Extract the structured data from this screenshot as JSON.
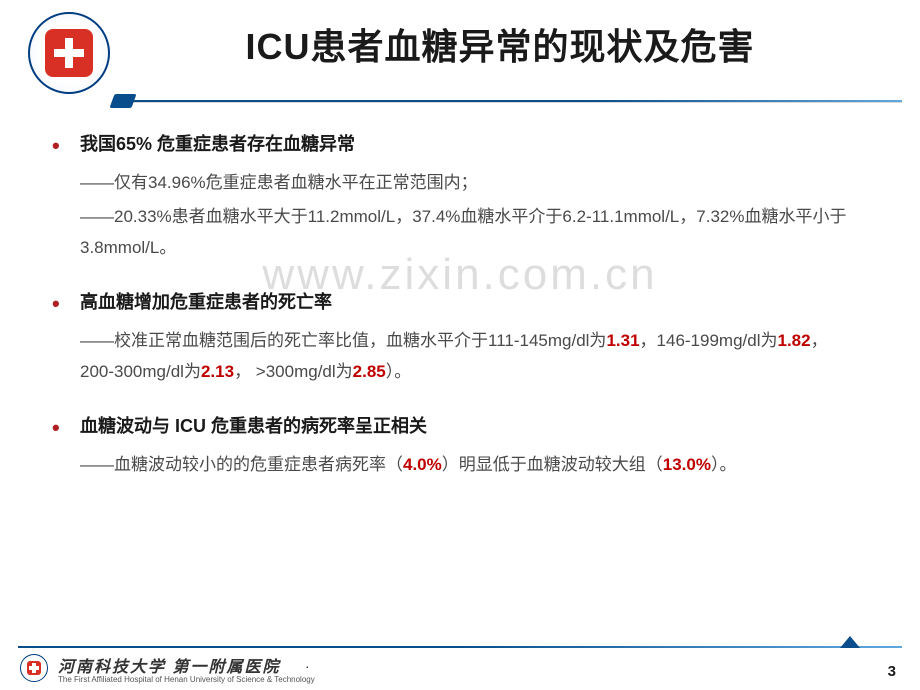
{
  "colors": {
    "accent_red": "#c00000",
    "nav_blue": "#0a4d8c",
    "logo_red": "#d93025",
    "text_dark": "#1a1a1a",
    "text_body": "#404040",
    "bg": "#ffffff",
    "watermark": "rgba(150,150,150,.32)"
  },
  "typography": {
    "title_size": 36,
    "bullet_size": 18,
    "body_size": 17,
    "footer_cn_size": 16,
    "footer_en_size": 8
  },
  "header": {
    "title": "ICU患者血糖异常的现状及危害"
  },
  "watermark": "www.zixin.com.cn",
  "bullets": [
    {
      "heading": "我国65% 危重症患者存在血糖异常",
      "lines": [
        {
          "text": "——仅有34.96%危重症患者血糖水平在正常范围内；"
        },
        {
          "text": "——20.33%患者血糖水平大于11.2mmol/L，37.4%血糖水平介于6.2-11.1mmol/L，7.32%血糖水平小于3.8mmol/L。"
        }
      ]
    },
    {
      "heading": "高血糖增加危重症患者的死亡率",
      "lines": [
        {
          "prefix": "——校准正常血糖范围后的死亡率比值，血糖水平介于111-145mg/dl为",
          "hl1": "1.31",
          "mid1": "，146-199mg/dl为",
          "hl2": "1.82",
          "mid2": "， 200-300mg/dl为",
          "hl3": "2.13",
          "mid3": "， >300mg/dl为",
          "hl4": "2.85",
          "suffix": "）。"
        }
      ]
    },
    {
      "heading": "血糖波动与 ICU 危重患者的病死率呈正相关",
      "lines": [
        {
          "prefix": "——血糖波动较小的的危重症患者病死率（",
          "hl1": "4.0%",
          "mid1": "）明显低于血糖波动较大组（",
          "hl2": "13.0%",
          "suffix": "）。"
        }
      ]
    }
  ],
  "footer": {
    "org_cn": "河南科技大学 第一附属医院",
    "org_en": "The First Affiliated Hospital of Henan University of Science & Technology",
    "page": "3",
    "dot": "·"
  }
}
